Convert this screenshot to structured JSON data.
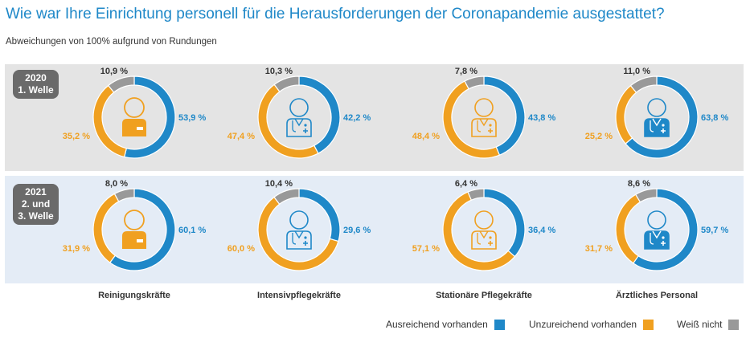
{
  "title": "Wie war Ihre Einrichtung personell für die Herausforderungen der Coronapandemie ausgestattet?",
  "subtitle": "Abweichungen von 100% aufgrund von Rundungen",
  "badges": {
    "y2020": {
      "line1": "2020",
      "line2": "1. Welle",
      "line3": ""
    },
    "y2021": {
      "line1": "2021",
      "line2": "2. und",
      "line3": "3. Welle"
    }
  },
  "colors": {
    "ausreichend": "#1f88c8",
    "unzureichend": "#f0a020",
    "weiss_nicht": "#999999"
  },
  "legend": [
    {
      "label": "Ausreichend vorhanden",
      "color": "#1f88c8"
    },
    {
      "label": "Unzureichend vorhanden",
      "color": "#f0a020"
    },
    {
      "label": "Weiß nicht",
      "color": "#999999"
    }
  ],
  "chart_data": {
    "type": "pie",
    "variant": "donut",
    "series_labels": [
      "Ausreichend vorhanden",
      "Unzureichend vorhanden",
      "Weiß nicht"
    ],
    "categories": [
      "Reinigungskräfte",
      "Intensivpflegekräfte",
      "Stationäre Pflegekräfte",
      "Ärztliches Personal"
    ],
    "icons": [
      "cleaner-icon",
      "intensive-care-nurse-icon",
      "nurse-icon",
      "doctor-icon"
    ],
    "rows": [
      {
        "year": "2020",
        "charts": [
          {
            "category": "Reinigungskräfte",
            "values": [
              53.9,
              35.2,
              10.9
            ],
            "labels": [
              "53,9 %",
              "35,2 %",
              "10,9 %"
            ]
          },
          {
            "category": "Intensivpflegekräfte",
            "values": [
              42.2,
              47.4,
              10.3
            ],
            "labels": [
              "42,2 %",
              "47,4 %",
              "10,3 %"
            ]
          },
          {
            "category": "Stationäre Pflegekräfte",
            "values": [
              43.8,
              48.4,
              7.8
            ],
            "labels": [
              "43,8 %",
              "48,4 %",
              "7,8 %"
            ]
          },
          {
            "category": "Ärztliches Personal",
            "values": [
              63.8,
              25.2,
              11.0
            ],
            "labels": [
              "63,8 %",
              "25,2 %",
              "11,0 %"
            ]
          }
        ]
      },
      {
        "year": "2021",
        "charts": [
          {
            "category": "Reinigungskräfte",
            "values": [
              60.1,
              31.9,
              8.0
            ],
            "labels": [
              "60,1 %",
              "31,9 %",
              "8,0 %"
            ]
          },
          {
            "category": "Intensivpflegekräfte",
            "values": [
              29.6,
              60.0,
              10.4
            ],
            "labels": [
              "29,6 %",
              "60,0 %",
              "10,4 %"
            ]
          },
          {
            "category": "Stationäre Pflegekräfte",
            "values": [
              36.4,
              57.1,
              6.4
            ],
            "labels": [
              "36,4 %",
              "57,1 %",
              "6,4 %"
            ]
          },
          {
            "category": "Ärztliches Personal",
            "values": [
              59.7,
              31.7,
              8.6
            ],
            "labels": [
              "59,7 %",
              "31,7 %",
              "8,6 %"
            ]
          }
        ]
      }
    ]
  }
}
